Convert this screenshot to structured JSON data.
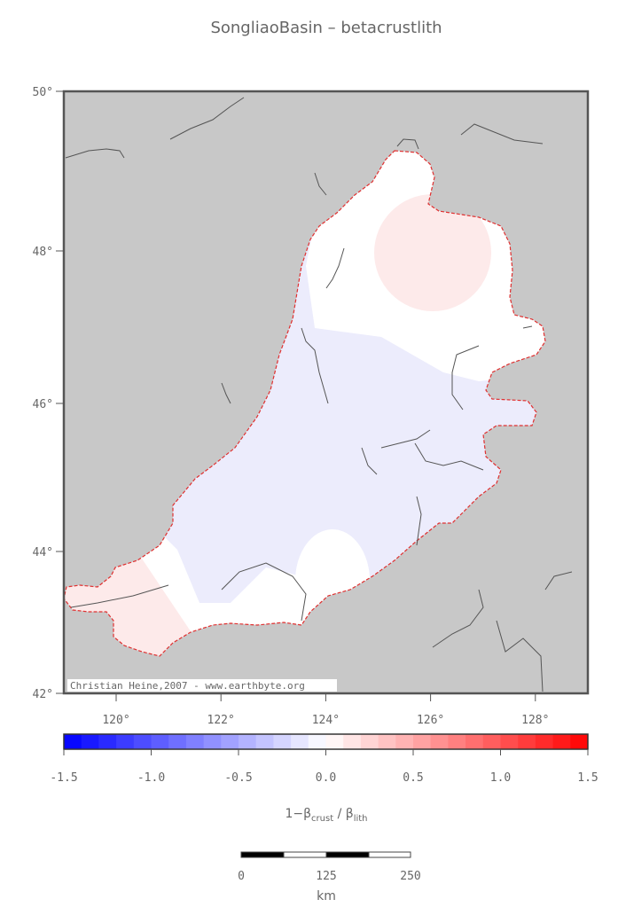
{
  "header": {
    "title": "SongliaoBasin – betacrustlith"
  },
  "map": {
    "lat_labels": [
      "50°",
      "48°",
      "46°",
      "44°",
      "42°"
    ],
    "lon_labels": [
      "120°",
      "122°",
      "124°",
      "126°",
      "128°"
    ],
    "credit": "Christian Heine,2007 - www.earthbyte.org"
  },
  "colorbar": {
    "tick_labels": [
      "-1.5",
      "-1.0",
      "-0.5",
      "0.0",
      "0.5",
      "1.0",
      "1.5"
    ],
    "label": {
      "prefix": "1−β",
      "sub1": "crust",
      "mid": " / β",
      "sub2": "lith"
    }
  },
  "scalebar": {
    "labels": [
      "0",
      "125",
      "250"
    ],
    "unit": "km"
  }
}
